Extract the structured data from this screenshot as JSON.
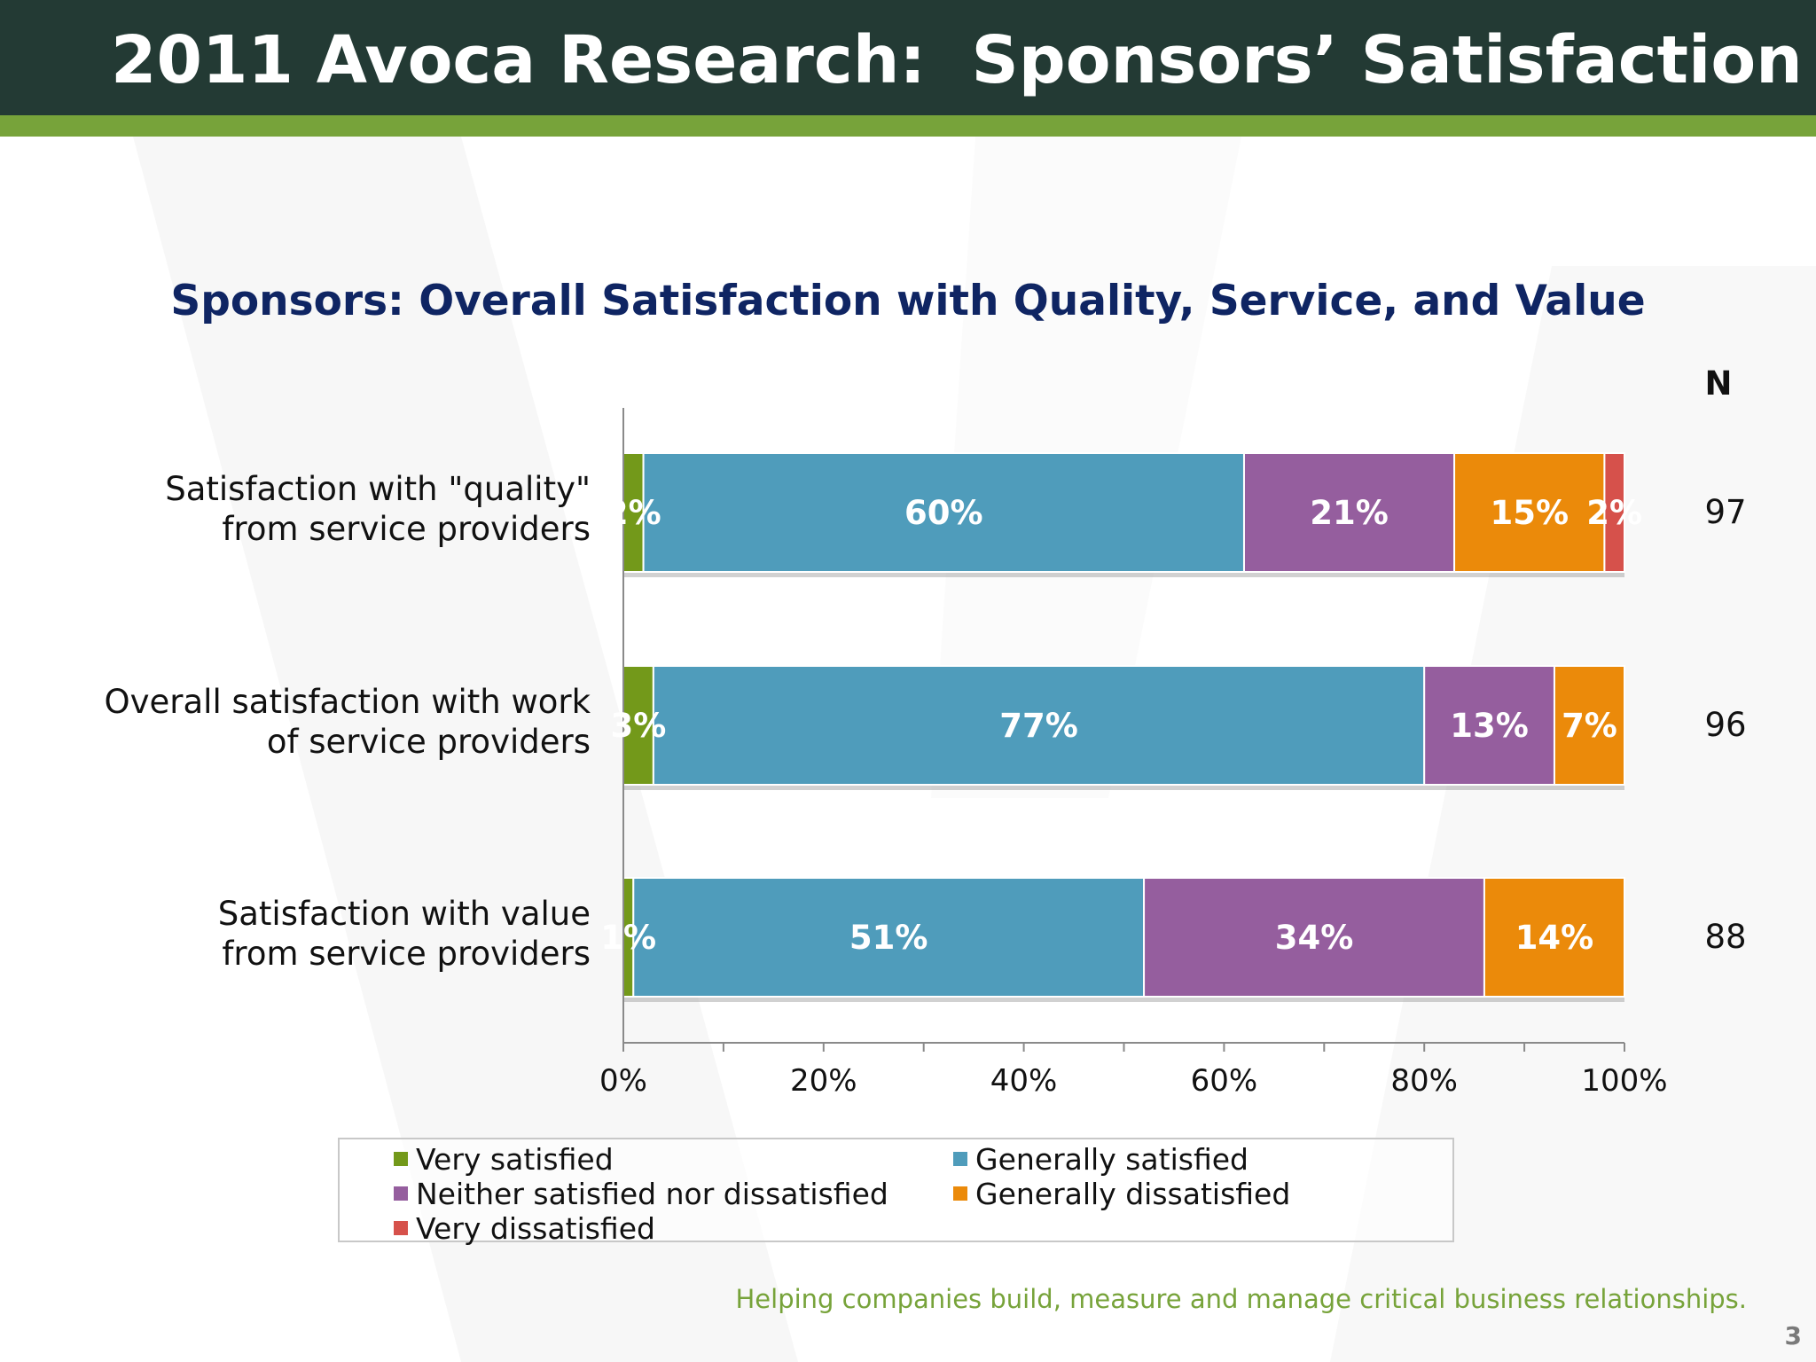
{
  "slide": {
    "title": "2011 Avoca Research:  Sponsors’ Satisfaction",
    "tagline": "Helping companies build, measure and manage critical business relationships.",
    "page_number": "3"
  },
  "colors": {
    "header_bg": "#233a34",
    "header_stripe": "#77a33a",
    "chart_title": "#0f2563",
    "tagline": "#77a33a"
  },
  "chart_data": {
    "type": "bar",
    "orientation": "horizontal",
    "stacked": true,
    "title": "Sponsors: Overall Satisfaction with Quality, Service, and Value",
    "categories": [
      [
        "Satisfaction with \"quality\"",
        "from service providers"
      ],
      [
        "Overall satisfaction with work",
        "of service providers"
      ],
      [
        "Satisfaction with value",
        "from service providers"
      ]
    ],
    "series": [
      {
        "name": "Very satisfied",
        "color": "#73991a",
        "values": [
          2,
          3,
          1
        ]
      },
      {
        "name": "Generally satisfied",
        "color": "#4f9cbb",
        "values": [
          60,
          77,
          51
        ]
      },
      {
        "name": "Neither satisfied nor dissatisfied",
        "color": "#955e9e",
        "values": [
          21,
          13,
          34
        ]
      },
      {
        "name": "Generally dissatisfied",
        "color": "#eb8a0a",
        "values": [
          15,
          7,
          14
        ]
      },
      {
        "name": "Very dissatisfied",
        "color": "#d6514b",
        "values": [
          2,
          0,
          0
        ]
      }
    ],
    "data_labels": [
      [
        "2%",
        "60%",
        "21%",
        "15%",
        "2%"
      ],
      [
        "3%",
        "77%",
        "13%",
        "7%",
        ""
      ],
      [
        "1%",
        "51%",
        "34%",
        "14%",
        ""
      ]
    ],
    "n_header": "N",
    "n_values": [
      "97",
      "96",
      "88"
    ],
    "xlim": [
      0,
      100
    ],
    "x_ticks": [
      "0%",
      "20%",
      "40%",
      "60%",
      "80%",
      "100%"
    ],
    "grid": false,
    "legend_position": "bottom"
  }
}
